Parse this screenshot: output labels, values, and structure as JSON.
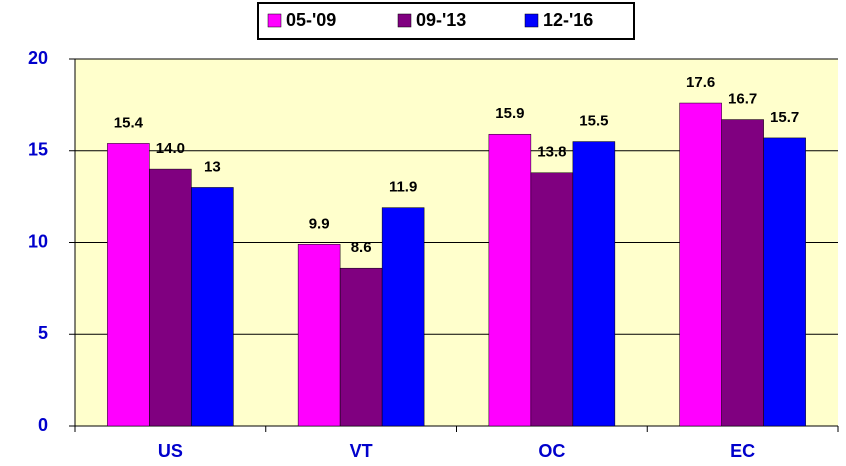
{
  "chart_data": {
    "type": "bar",
    "categories": [
      "US",
      "VT",
      "OC",
      "EC"
    ],
    "series": [
      {
        "name": "05-'09",
        "color": "#ff00ff",
        "values": [
          15.4,
          9.9,
          15.9,
          17.6
        ]
      },
      {
        "name": "09-'13",
        "color": "#800080",
        "values": [
          14.0,
          8.6,
          13.8,
          16.7
        ],
        "value_labels": [
          "14.0",
          "8.6",
          "13.8",
          "16.7"
        ]
      },
      {
        "name": "12-'16",
        "color": "#0000ff",
        "values": [
          13,
          11.9,
          15.5,
          15.7
        ]
      }
    ],
    "ylim": [
      0,
      20
    ],
    "yticks": [
      0,
      5,
      10,
      15,
      20
    ],
    "grid": true,
    "legend": "top"
  }
}
